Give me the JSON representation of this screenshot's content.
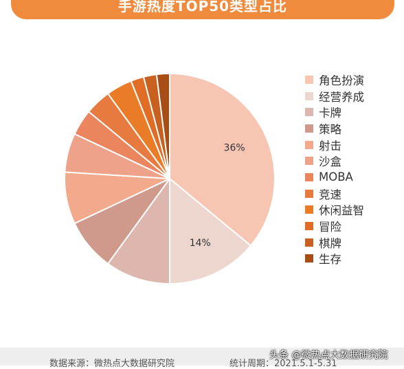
{
  "title": "手游热度TOP50类型占比",
  "chart_data": {
    "type": "pie",
    "title": "手游热度TOP50类型占比",
    "labels": [
      "角色扮演",
      "经营养成",
      "卡牌",
      "策略",
      "射击",
      "沙盒",
      "MOBA",
      "竞速",
      "休闲益智",
      "冒险",
      "棋牌",
      "生存"
    ],
    "values": [
      36,
      14,
      10,
      8,
      8,
      6,
      4,
      4,
      4,
      2,
      2,
      2
    ],
    "value_labels": [
      "36%",
      "14%",
      "",
      "",
      "",
      "",
      "",
      "",
      "",
      "",
      "",
      ""
    ],
    "colors": [
      "#f7c6b3",
      "#ecd6cd",
      "#ddb6ad",
      "#cf9a8c",
      "#f2a98c",
      "#efa28a",
      "#ea855d",
      "#e77a3e",
      "#ea7b27",
      "#e06c26",
      "#c8611f",
      "#a84d16"
    ],
    "legend_position": "right"
  },
  "footer": {
    "source": "数据来源：微热点大数据研究院",
    "period": "统计周期：2021.5.1-5.31"
  },
  "watermark": "头条 @微热点大数据研究院"
}
